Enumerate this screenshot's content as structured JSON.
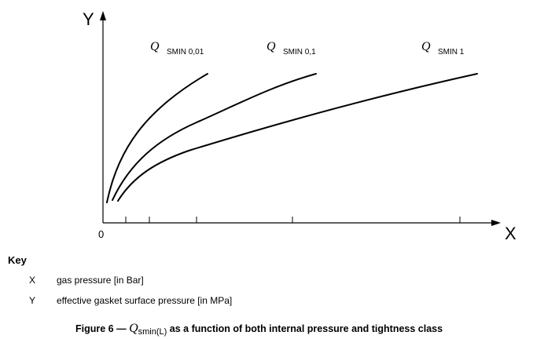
{
  "axes": {
    "x_label": "X",
    "y_label": "Y",
    "origin_label": "0"
  },
  "curves": [
    {
      "symbol": "Q",
      "subscript": "SMIN 0,01"
    },
    {
      "symbol": "Q",
      "subscript": "SMIN 0,1"
    },
    {
      "symbol": "Q",
      "subscript": "SMIN 1"
    }
  ],
  "key": {
    "title": "Key",
    "items": [
      {
        "letter": "X",
        "description": "gas pressure [in Bar]"
      },
      {
        "letter": "Y",
        "description": "effective gasket surface pressure [in MPa]"
      }
    ]
  },
  "caption": {
    "prefix": "Figure 6 —",
    "symbol": "Q",
    "subscript": "smin(L)",
    "suffix": "as a function of both internal pressure and tightness class"
  }
}
